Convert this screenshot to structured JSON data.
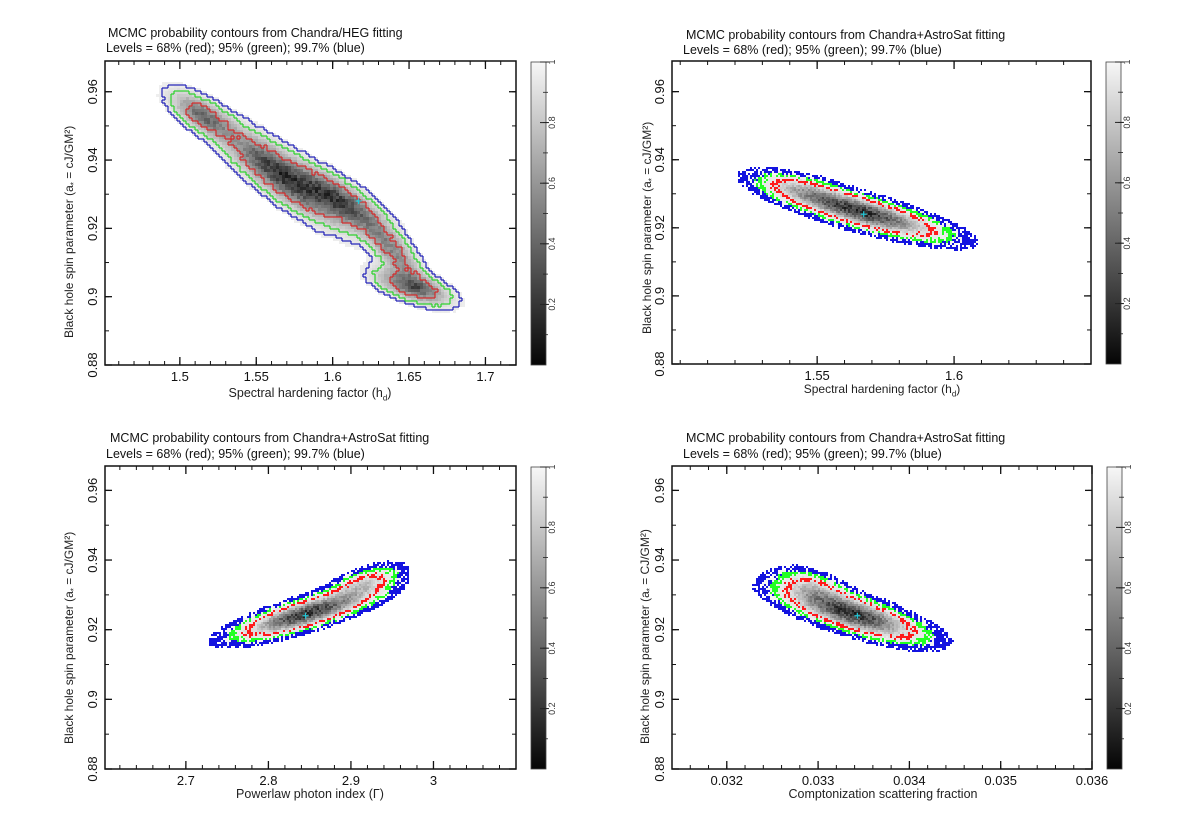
{
  "chart_data": [
    {
      "type": "heatmap",
      "title": "MCMC probability contours from Chandra/HEG fitting",
      "subtitle": "Levels = 68% (red); 95% (green); 99.7% (blue)",
      "xlabel": "Spectral hardening factor (h",
      "xlabel_sub": "d",
      "xlabel_end": ")",
      "ylabel": "Black hole spin parameter (a",
      "ylabel_sub": "*",
      "ylabel_end": " = cJ/GM²)",
      "xlim": [
        1.451,
        1.72
      ],
      "ylim": [
        0.88,
        0.969
      ],
      "xticks": [
        1.5,
        1.55,
        1.6,
        1.65,
        1.7
      ],
      "xtick_labels": [
        "1.5",
        "1.55",
        "1.6",
        "1.65",
        "1.7"
      ],
      "xminor_step": 0.01,
      "yticks": [
        0.88,
        0.9,
        0.92,
        0.94,
        0.96
      ],
      "ytick_labels": [
        "0.88",
        "0.9",
        "0.92",
        "0.94",
        "0.96"
      ],
      "yminor_step": 0.01,
      "best_fit": [
        1.617,
        0.928
      ],
      "contour_style": "line",
      "distribution": {
        "blobs": [
          {
            "x": 1.515,
            "y": 0.953,
            "sx": 0.012,
            "sy": 0.004,
            "rho": -0.7,
            "w": 0.7
          },
          {
            "x": 1.565,
            "y": 0.936,
            "sx": 0.022,
            "sy": 0.008,
            "rho": -0.85,
            "w": 1.0
          },
          {
            "x": 1.605,
            "y": 0.928,
            "sx": 0.018,
            "sy": 0.006,
            "rho": -0.8,
            "w": 0.9
          },
          {
            "x": 1.64,
            "y": 0.913,
            "sx": 0.012,
            "sy": 0.006,
            "rho": -0.8,
            "w": 0.55
          },
          {
            "x": 1.652,
            "y": 0.903,
            "sx": 0.014,
            "sy": 0.003,
            "rho": -0.6,
            "w": 0.8
          }
        ]
      },
      "contour_levels": [
        "68%",
        "95%",
        "99.7%"
      ],
      "contour_colors": [
        "#d42a2a",
        "#2bd22b",
        "#1f1fb8"
      ],
      "colorbar": {
        "range": [
          0,
          1
        ],
        "ticks": [
          0.2,
          0.4,
          0.6,
          0.8,
          1
        ],
        "tick_labels": [
          "0.2",
          "0.4",
          "0.6",
          "0.8",
          "1"
        ]
      },
      "legend": "none"
    },
    {
      "type": "heatmap",
      "title": "MCMC probability contours from Chandra+AstroSat fitting",
      "subtitle": "Levels = 68% (red); 95% (green); 99.7% (blue)",
      "xlabel": "Spectral hardening factor (h",
      "xlabel_sub": "d",
      "xlabel_end": ")",
      "ylabel": "Black hole spin parameter (a",
      "ylabel_sub": "*",
      "ylabel_end": " = cJ/GM²)",
      "xlim": [
        1.497,
        1.65
      ],
      "ylim": [
        0.88,
        0.969
      ],
      "xticks": [
        1.55,
        1.6
      ],
      "xtick_labels": [
        "1.55",
        "1.6"
      ],
      "xminor_step": 0.01,
      "yticks": [
        0.88,
        0.9,
        0.92,
        0.94,
        0.96
      ],
      "ytick_labels": [
        "0.88",
        "0.9",
        "0.92",
        "0.94",
        "0.96"
      ],
      "yminor_step": 0.01,
      "best_fit": [
        1.567,
        0.924
      ],
      "contour_style": "dots",
      "distribution": {
        "blobs": [
          {
            "x": 1.567,
            "y": 0.9245,
            "sx": 0.016,
            "sy": 0.0042,
            "rho": -0.8,
            "w": 1.0
          },
          {
            "x": 1.545,
            "y": 0.931,
            "sx": 0.01,
            "sy": 0.003,
            "rho": -0.6,
            "w": 0.35
          }
        ]
      },
      "contour_levels": [
        "68%",
        "95%",
        "99.7%"
      ],
      "contour_colors": [
        "#ff1a1a",
        "#22ff22",
        "#1414e0"
      ],
      "colorbar": {
        "range": [
          0,
          1
        ],
        "ticks": [
          0.2,
          0.4,
          0.6,
          0.8,
          1
        ],
        "tick_labels": [
          "0.2",
          "0.4",
          "0.6",
          "0.8",
          "1"
        ]
      },
      "legend": "none"
    },
    {
      "type": "heatmap",
      "title": "MCMC probability contours from Chandra+AstroSat fitting",
      "subtitle": "Levels = 68% (red); 95% (green); 99.7% (blue)",
      "xlabel": "Powerlaw photon index (Γ)",
      "xlabel_sub": "",
      "xlabel_end": "",
      "ylabel": "Black hole spin parameter (a",
      "ylabel_sub": "*",
      "ylabel_end": " = cJ/GM²)",
      "xlim": [
        2.602,
        3.1
      ],
      "ylim": [
        0.88,
        0.967
      ],
      "xticks": [
        2.7,
        2.8,
        2.9,
        3
      ],
      "xtick_labels": [
        "2.7",
        "2.8",
        "2.9",
        "3"
      ],
      "xminor_step": 0.02,
      "yticks": [
        0.88,
        0.9,
        0.92,
        0.94,
        0.96
      ],
      "ytick_labels": [
        "0.88",
        "0.9",
        "0.92",
        "0.94",
        "0.96"
      ],
      "yminor_step": 0.01,
      "best_fit": [
        2.845,
        0.924
      ],
      "contour_style": "dots",
      "distribution": {
        "blobs": [
          {
            "x": 2.845,
            "y": 0.9245,
            "sx": 0.045,
            "sy": 0.0038,
            "rho": 0.8,
            "w": 1.0
          },
          {
            "x": 2.915,
            "y": 0.933,
            "sx": 0.025,
            "sy": 0.003,
            "rho": 0.6,
            "w": 0.4
          }
        ]
      },
      "contour_levels": [
        "68%",
        "95%",
        "99.7%"
      ],
      "contour_colors": [
        "#ff1a1a",
        "#22ff22",
        "#1414e0"
      ],
      "colorbar": {
        "range": [
          0,
          1
        ],
        "ticks": [
          0.2,
          0.4,
          0.6,
          0.8,
          1
        ],
        "tick_labels": [
          "0.2",
          "0.4",
          "0.6",
          "0.8",
          "1"
        ]
      },
      "legend": "none"
    },
    {
      "type": "heatmap",
      "title": "MCMC probability contours from Chandra+AstroSat fitting",
      "subtitle": "Levels = 68% (red); 95% (green); 99.7% (blue)",
      "xlabel": "Comptonization scattering fraction",
      "xlabel_sub": "",
      "xlabel_end": "",
      "ylabel": "Black hole spin parameter (a",
      "ylabel_sub": "*",
      "ylabel_end": " = CJ/GM²)",
      "xlim": [
        0.0314,
        0.036
      ],
      "ylim": [
        0.88,
        0.967
      ],
      "xticks": [
        0.032,
        0.033,
        0.034,
        0.035,
        0.036
      ],
      "xtick_labels": [
        "0.032",
        "0.033",
        "0.034",
        "0.035",
        "0.036"
      ],
      "xminor_step": 0.0002,
      "yticks": [
        0.88,
        0.9,
        0.92,
        0.94,
        0.96
      ],
      "ytick_labels": [
        "0.88",
        "0.9",
        "0.92",
        "0.94",
        "0.96"
      ],
      "yminor_step": 0.01,
      "best_fit": [
        0.03343,
        0.924
      ],
      "contour_style": "dots",
      "distribution": {
        "blobs": [
          {
            "x": 0.03338,
            "y": 0.9245,
            "sx": 0.00042,
            "sy": 0.0042,
            "rho": -0.75,
            "w": 1.0
          },
          {
            "x": 0.03295,
            "y": 0.932,
            "sx": 0.00022,
            "sy": 0.003,
            "rho": -0.5,
            "w": 0.35
          }
        ]
      },
      "contour_levels": [
        "68%",
        "95%",
        "99.7%"
      ],
      "contour_colors": [
        "#ff1a1a",
        "#22ff22",
        "#1414e0"
      ],
      "colorbar": {
        "range": [
          0,
          1
        ],
        "ticks": [
          0.2,
          0.4,
          0.6,
          0.8,
          1
        ],
        "tick_labels": [
          "0.2",
          "0.4",
          "0.6",
          "0.8",
          "1"
        ]
      },
      "legend": "none"
    }
  ]
}
